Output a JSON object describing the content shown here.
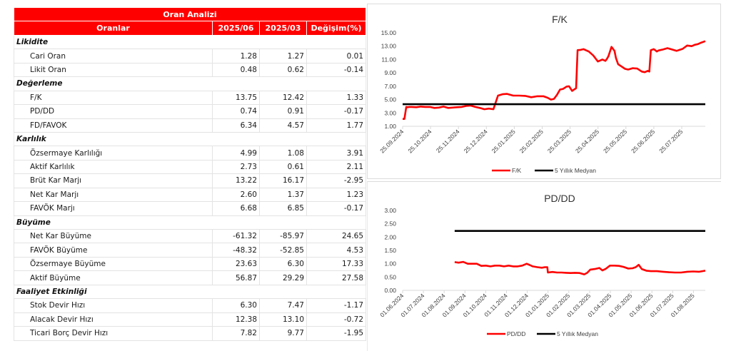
{
  "table": {
    "title": "Oran Analizi",
    "columns": [
      "Oranlar",
      "2025/06",
      "2025/03",
      "Değişim(%)"
    ],
    "sections": [
      {
        "name": "Likidite",
        "rows": [
          {
            "label": "Cari Oran",
            "v1": "1.28",
            "v2": "1.27",
            "chg": "0.01"
          },
          {
            "label": "Likit Oran",
            "v1": "0.48",
            "v2": "0.62",
            "chg": "-0.14"
          }
        ]
      },
      {
        "name": "Değerleme",
        "rows": [
          {
            "label": "F/K",
            "v1": "13.75",
            "v2": "12.42",
            "chg": "1.33"
          },
          {
            "label": "PD/DD",
            "v1": "0.74",
            "v2": "0.91",
            "chg": "-0.17"
          },
          {
            "label": "FD/FAVOK",
            "v1": "6.34",
            "v2": "4.57",
            "chg": "1.77"
          }
        ]
      },
      {
        "name": "Karlılık",
        "rows": [
          {
            "label": "Özsermaye Karlılığı",
            "v1": "4.99",
            "v2": "1.08",
            "chg": "3.91"
          },
          {
            "label": "Aktif Karlılık",
            "v1": "2.73",
            "v2": "0.61",
            "chg": "2.11"
          },
          {
            "label": "Brüt Kar Marjı",
            "v1": "13.22",
            "v2": "16.17",
            "chg": "-2.95"
          },
          {
            "label": "Net Kar Marjı",
            "v1": "2.60",
            "v2": "1.37",
            "chg": "1.23"
          },
          {
            "label": "FAVÖK Marjı",
            "v1": "6.68",
            "v2": "6.85",
            "chg": "-0.17"
          }
        ]
      },
      {
        "name": "Büyüme",
        "rows": [
          {
            "label": "Net Kar Büyüme",
            "v1": "-61.32",
            "v2": "-85.97",
            "chg": "24.65"
          },
          {
            "label": "FAVÖK Büyüme",
            "v1": "-48.32",
            "v2": "-52.85",
            "chg": "4.53"
          },
          {
            "label": "Özsermaye Büyüme",
            "v1": "23.63",
            "v2": "6.30",
            "chg": "17.33"
          },
          {
            "label": "Aktif Büyüme",
            "v1": "56.87",
            "v2": "29.29",
            "chg": "27.58"
          }
        ]
      },
      {
        "name": "Faaliyet Etkinliği",
        "rows": [
          {
            "label": "Stok Devir Hızı",
            "v1": "6.30",
            "v2": "7.47",
            "chg": "-1.17"
          },
          {
            "label": "Alacak Devir Hızı",
            "v1": "12.38",
            "v2": "13.10",
            "chg": "-0.72"
          },
          {
            "label": "Ticari Borç Devir Hızı",
            "v1": "7.82",
            "v2": "9.77",
            "chg": "-1.95"
          }
        ]
      }
    ]
  },
  "colors": {
    "header_bg": "#ff0000",
    "header_text": "#ffffff",
    "series_main": "#ff0000",
    "series_median": "#000000"
  },
  "chart_data": [
    {
      "type": "line",
      "title": "F/K",
      "xlabel": "",
      "ylabel": "",
      "ylim": [
        1.0,
        15.0
      ],
      "y_ticks": [
        "15.00",
        "13.00",
        "11.00",
        "9.00",
        "7.00",
        "5.00",
        "3.00",
        "1.00"
      ],
      "x_ticks": [
        "25.09.2024",
        "25.10.2024",
        "25.11.2024",
        "25.12.2024",
        "25.01.2025",
        "25.02.2025",
        "25.03.2025",
        "25.04.2025",
        "25.05.2025",
        "25.06.2025",
        "25.07.2025"
      ],
      "grid": false,
      "legend_position": "bottom",
      "legend": [
        "F/K",
        "5 Yıllık Medyan"
      ],
      "series": [
        {
          "name": "F/K",
          "color": "#ff0000",
          "x_frac": [
            0.0,
            0.006,
            0.012,
            0.016,
            0.022,
            0.03,
            0.045,
            0.06,
            0.075,
            0.09,
            0.105,
            0.12,
            0.135,
            0.15,
            0.165,
            0.18,
            0.195,
            0.21,
            0.225,
            0.24,
            0.255,
            0.27,
            0.285,
            0.3,
            0.315,
            0.33,
            0.345,
            0.365,
            0.385,
            0.405,
            0.425,
            0.445,
            0.465,
            0.48,
            0.49,
            0.5,
            0.51,
            0.52,
            0.53,
            0.542,
            0.55,
            0.56,
            0.568,
            0.573,
            0.578,
            0.588,
            0.598,
            0.605,
            0.615,
            0.63,
            0.645,
            0.66,
            0.67,
            0.675,
            0.68,
            0.69,
            0.7,
            0.705,
            0.712,
            0.722,
            0.735,
            0.745,
            0.76,
            0.775,
            0.79,
            0.8,
            0.81,
            0.815,
            0.82,
            0.83,
            0.84,
            0.845,
            0.85,
            0.86,
            0.875,
            0.89,
            0.905,
            0.915,
            0.925,
            0.94,
            0.955,
            0.965,
            0.975,
            0.985,
            1.0
          ],
          "values": [
            2.1,
            2.1,
            3.9,
            3.85,
            3.9,
            3.9,
            3.85,
            3.95,
            3.9,
            3.9,
            3.75,
            3.8,
            3.95,
            3.75,
            3.8,
            3.85,
            3.9,
            4.05,
            4.1,
            3.9,
            3.75,
            3.55,
            3.65,
            3.55,
            5.6,
            5.8,
            5.85,
            5.6,
            5.6,
            5.55,
            5.35,
            5.5,
            5.5,
            5.25,
            5.0,
            5.1,
            5.7,
            6.5,
            6.6,
            6.95,
            7.0,
            6.3,
            6.55,
            6.7,
            12.4,
            12.45,
            12.55,
            12.4,
            12.2,
            11.6,
            10.7,
            11.0,
            10.8,
            11.1,
            11.5,
            12.9,
            12.3,
            11.2,
            10.3,
            10.0,
            9.6,
            9.5,
            9.7,
            9.65,
            9.2,
            9.1,
            9.3,
            9.2,
            12.4,
            12.55,
            12.2,
            12.35,
            12.4,
            12.5,
            12.7,
            12.5,
            12.3,
            12.45,
            12.6,
            13.1,
            13.0,
            13.2,
            13.3,
            13.5,
            13.75
          ]
        },
        {
          "name": "5 Yıllık Medyan",
          "color": "#000000",
          "x_frac": [
            0.0,
            1.0
          ],
          "values": [
            4.3,
            4.3
          ]
        }
      ]
    },
    {
      "type": "line",
      "title": "PD/DD",
      "xlabel": "",
      "ylabel": "",
      "ylim": [
        0.0,
        3.0
      ],
      "y_ticks": [
        "3.00",
        "2.50",
        "2.00",
        "1.50",
        "1.00",
        "0.50",
        "0.00"
      ],
      "x_ticks": [
        "01.06.2024",
        "01.07.2024",
        "01.08.2024",
        "01.09.2024",
        "01.10.2024",
        "01.11.2024",
        "01.12.2024",
        "01.01.2025",
        "01.02.2025",
        "01.03.2025",
        "01.04.2025",
        "01.05.2025",
        "01.06.2025",
        "01.07.2025",
        "01.08.2025"
      ],
      "grid": false,
      "legend_position": "bottom",
      "legend": [
        "PD/DD",
        "5 Yıllık Medyan"
      ],
      "series": [
        {
          "name": "PD/DD",
          "color": "#ff0000",
          "x_frac": [
            0.172,
            0.185,
            0.2,
            0.215,
            0.23,
            0.245,
            0.26,
            0.275,
            0.29,
            0.305,
            0.32,
            0.335,
            0.35,
            0.365,
            0.38,
            0.395,
            0.41,
            0.42,
            0.43,
            0.445,
            0.46,
            0.47,
            0.478,
            0.48,
            0.495,
            0.51,
            0.525,
            0.54,
            0.555,
            0.57,
            0.585,
            0.6,
            0.61,
            0.62,
            0.635,
            0.65,
            0.66,
            0.67,
            0.685,
            0.7,
            0.715,
            0.73,
            0.745,
            0.76,
            0.77,
            0.78,
            0.79,
            0.805,
            0.82,
            0.84,
            0.86,
            0.88,
            0.9,
            0.92,
            0.94,
            0.96,
            0.98,
            1.0
          ],
          "values": [
            1.06,
            1.04,
            1.07,
            1.0,
            1.0,
            1.0,
            0.92,
            0.93,
            0.9,
            0.93,
            0.93,
            0.9,
            0.93,
            0.9,
            0.9,
            0.93,
            1.0,
            0.95,
            0.9,
            0.87,
            0.85,
            0.87,
            0.87,
            0.67,
            0.69,
            0.67,
            0.67,
            0.66,
            0.65,
            0.66,
            0.65,
            0.6,
            0.66,
            0.78,
            0.8,
            0.84,
            0.75,
            0.8,
            0.93,
            0.93,
            0.92,
            0.88,
            0.82,
            0.83,
            0.87,
            0.96,
            0.8,
            0.74,
            0.72,
            0.72,
            0.7,
            0.68,
            0.67,
            0.67,
            0.7,
            0.71,
            0.7,
            0.74
          ]
        },
        {
          "name": "5 Yıllık Medyan",
          "color": "#000000",
          "x_frac": [
            0.172,
            1.0
          ],
          "values": [
            2.23,
            2.23
          ]
        }
      ]
    }
  ]
}
